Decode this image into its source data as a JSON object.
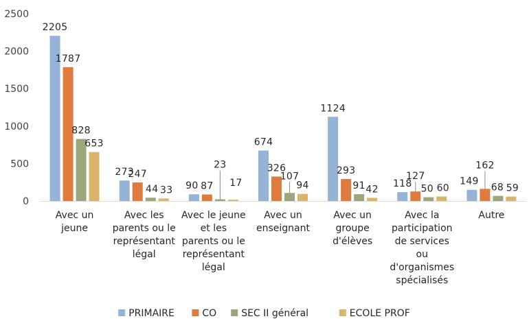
{
  "chart_data": {
    "type": "bar",
    "categories": [
      [
        "Avec un",
        "jeune"
      ],
      [
        "Avec les",
        "parents ou le",
        "représentant",
        "légal"
      ],
      [
        "Avec le jeune",
        "et les",
        "parents ou le",
        "représentant",
        "légal"
      ],
      [
        "Avec un",
        "enseignant"
      ],
      [
        "Avec un",
        "groupe",
        "d'élèves"
      ],
      [
        "Avec la",
        "participation",
        "de services",
        "ou",
        "d'organismes",
        "spécialisés"
      ],
      [
        "Autre"
      ]
    ],
    "series": [
      {
        "name": "PRIMAIRE",
        "color": "#95B3D7",
        "values": [
          2205,
          273,
          90,
          674,
          1124,
          118,
          149
        ]
      },
      {
        "name": "CO",
        "color": "#E07B3E",
        "values": [
          1787,
          247,
          87,
          326,
          293,
          127,
          162
        ]
      },
      {
        "name": "SEC II général",
        "color": "#9BA77A",
        "values": [
          828,
          44,
          23,
          107,
          91,
          50,
          68
        ]
      },
      {
        "name": "ECOLE PROF",
        "color": "#D9B46A",
        "values": [
          653,
          33,
          17,
          94,
          42,
          60,
          59
        ]
      }
    ],
    "ylim": [
      0,
      2500
    ],
    "yticks": [
      0,
      500,
      1000,
      1500,
      2000,
      2500
    ],
    "grid": false,
    "legend": "bottom",
    "title": "",
    "xlabel": "",
    "ylabel": ""
  }
}
